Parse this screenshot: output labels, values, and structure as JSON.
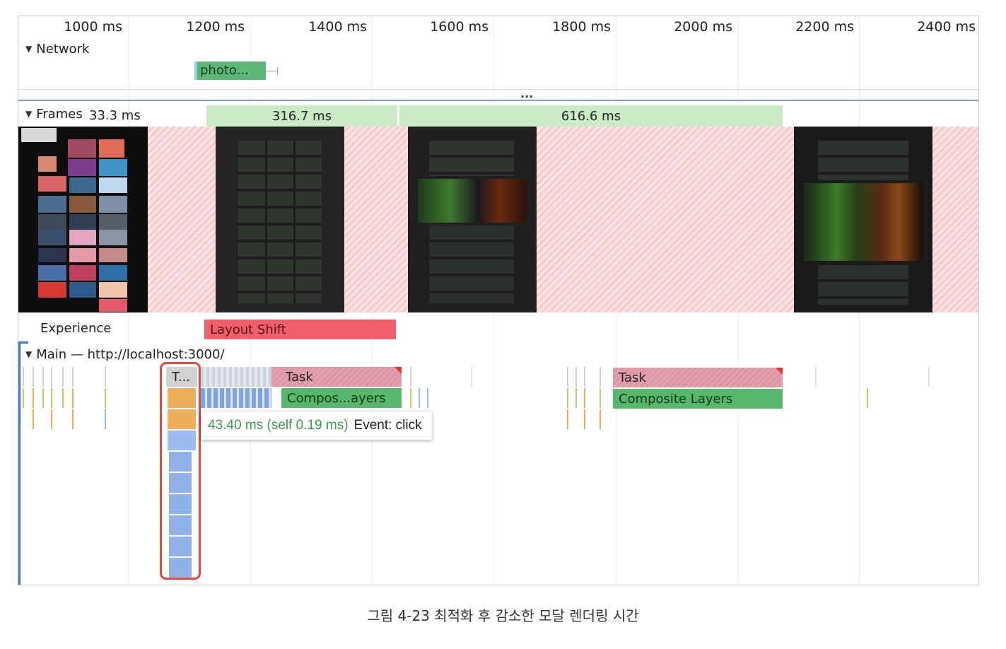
{
  "ruler": {
    "ticks": [
      "1000 ms",
      "1200 ms",
      "1400 ms",
      "1600 ms",
      "1800 ms",
      "2000 ms",
      "2200 ms",
      "2400 ms"
    ]
  },
  "network": {
    "label": "Network",
    "request_label": "photo..."
  },
  "collapsed_indicator": "...",
  "frames": {
    "label": "Frames",
    "first_duration": "33.3 ms",
    "durations": [
      "316.7 ms",
      "616.6 ms"
    ]
  },
  "experience": {
    "label": "Experience",
    "layout_shift_label": "Layout Shift"
  },
  "main": {
    "label": "Main — http://localhost:3000/",
    "task_short": "T...",
    "task1": "Task",
    "composite1": "Compos...ayers",
    "task2": "Task",
    "composite2": "Composite Layers"
  },
  "tooltip": {
    "duration": "43.40 ms (self 0.19 ms)",
    "event": "Event: click"
  },
  "caption": "그림 4-23 최적화 후 감소한 모달 렌더링 시간",
  "colors": {
    "frame_green": "#c9ecc4",
    "hatch_pink": "#f7c2c7",
    "layout_shift": "#f0606a",
    "task_gray": "#d2d2d2",
    "task_pink": "#e2a0ad",
    "composite_green": "#55b86b",
    "scripting_orange": "#f0ae5b",
    "scripting_blue": "#9dbcee",
    "highlight_red": "#e84a3c",
    "tooltip_green": "#3b9a4c",
    "selection_blue": "#3b78e7"
  }
}
